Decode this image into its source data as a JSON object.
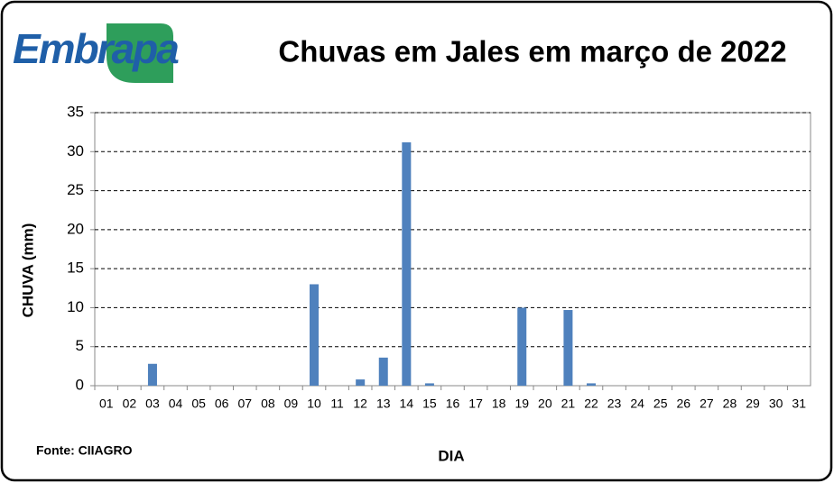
{
  "chart_data": {
    "type": "bar",
    "logo": "Embrapa",
    "title": "Chuvas em Jales em março de 2022",
    "x_label": "DIA",
    "y_label": "CHUVA  (mm)",
    "source": "Fonte: CIIAGRO",
    "categories": [
      "01",
      "02",
      "03",
      "04",
      "05",
      "06",
      "07",
      "08",
      "09",
      "10",
      "11",
      "12",
      "13",
      "14",
      "15",
      "16",
      "17",
      "18",
      "19",
      "20",
      "21",
      "22",
      "23",
      "24",
      "25",
      "26",
      "27",
      "28",
      "29",
      "30",
      "31"
    ],
    "values": [
      0,
      0,
      2.8,
      0,
      0,
      0,
      0,
      0,
      0,
      13,
      0,
      0.8,
      3.6,
      31.2,
      0.3,
      0,
      0,
      0,
      10,
      0,
      9.7,
      0.3,
      0,
      0,
      0,
      0,
      0,
      0,
      0,
      0,
      0
    ],
    "color": "#4f81bd",
    "ylim": [
      0,
      35
    ],
    "yticks": [
      0,
      5,
      10,
      15,
      20,
      25,
      30,
      35
    ],
    "grid": true
  }
}
